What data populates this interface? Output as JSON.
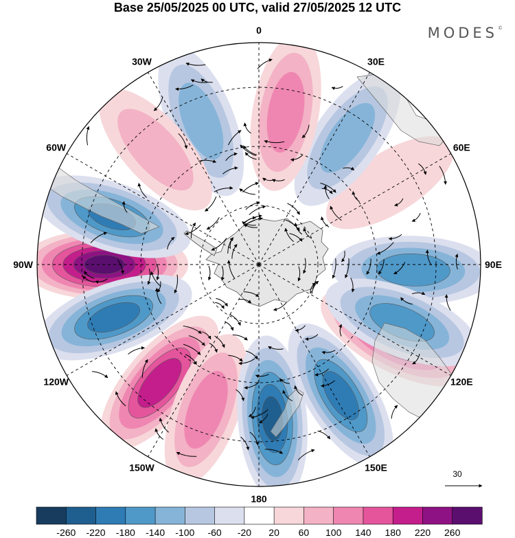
{
  "header": {
    "title": "Base 25/05/2025 00 UTC, valid 27/05/2025 12 UTC",
    "logo": "MODES"
  },
  "map": {
    "projection": "south-polar-stereographic",
    "longitude_labels": [
      {
        "text": "0",
        "lon": 0
      },
      {
        "text": "30E",
        "lon": 30
      },
      {
        "text": "60E",
        "lon": 60
      },
      {
        "text": "90E",
        "lon": 90
      },
      {
        "text": "120E",
        "lon": 120
      },
      {
        "text": "150E",
        "lon": 150
      },
      {
        "text": "180",
        "lon": 180
      },
      {
        "text": "150W",
        "lon": -150
      },
      {
        "text": "120W",
        "lon": -120
      },
      {
        "text": "90W",
        "lon": -90
      },
      {
        "text": "60W",
        "lon": -60
      },
      {
        "text": "30W",
        "lon": -30
      }
    ],
    "wave_number": 6,
    "anomaly_blobs": [
      {
        "lon": -90,
        "strength": 270
      },
      {
        "lon": -72,
        "strength": -190
      },
      {
        "lon": -110,
        "strength": -200
      },
      {
        "lon": -140,
        "strength": 210
      },
      {
        "lon": -160,
        "strength": 130
      },
      {
        "lon": 175,
        "strength": -230
      },
      {
        "lon": 148,
        "strength": -200
      },
      {
        "lon": 118,
        "strength": 200
      },
      {
        "lon": 92,
        "strength": -180
      },
      {
        "lon": 58,
        "strength": 60
      },
      {
        "lon": 35,
        "strength": -130
      },
      {
        "lon": 10,
        "strength": 130
      },
      {
        "lon": -22,
        "strength": -130
      },
      {
        "lon": -42,
        "strength": 90
      },
      {
        "lon": 112,
        "strength": -170
      }
    ],
    "reference_vector": {
      "label": "30"
    }
  },
  "colorbar": {
    "ticks": [
      "-260",
      "-220",
      "-180",
      "-140",
      "-100",
      "-60",
      "-20",
      "20",
      "60",
      "100",
      "140",
      "180",
      "220",
      "260"
    ],
    "colors": [
      "#173c5e",
      "#1f5f8f",
      "#2f7cb5",
      "#4f99c9",
      "#86b4d8",
      "#b7c7e1",
      "#dcdfee",
      "#ffffff",
      "#f7d7da",
      "#f3b2c5",
      "#ef86b1",
      "#e4559c",
      "#c41e8c",
      "#8e1283",
      "#5a0f6e"
    ],
    "land_color": "#e2e2e2"
  }
}
